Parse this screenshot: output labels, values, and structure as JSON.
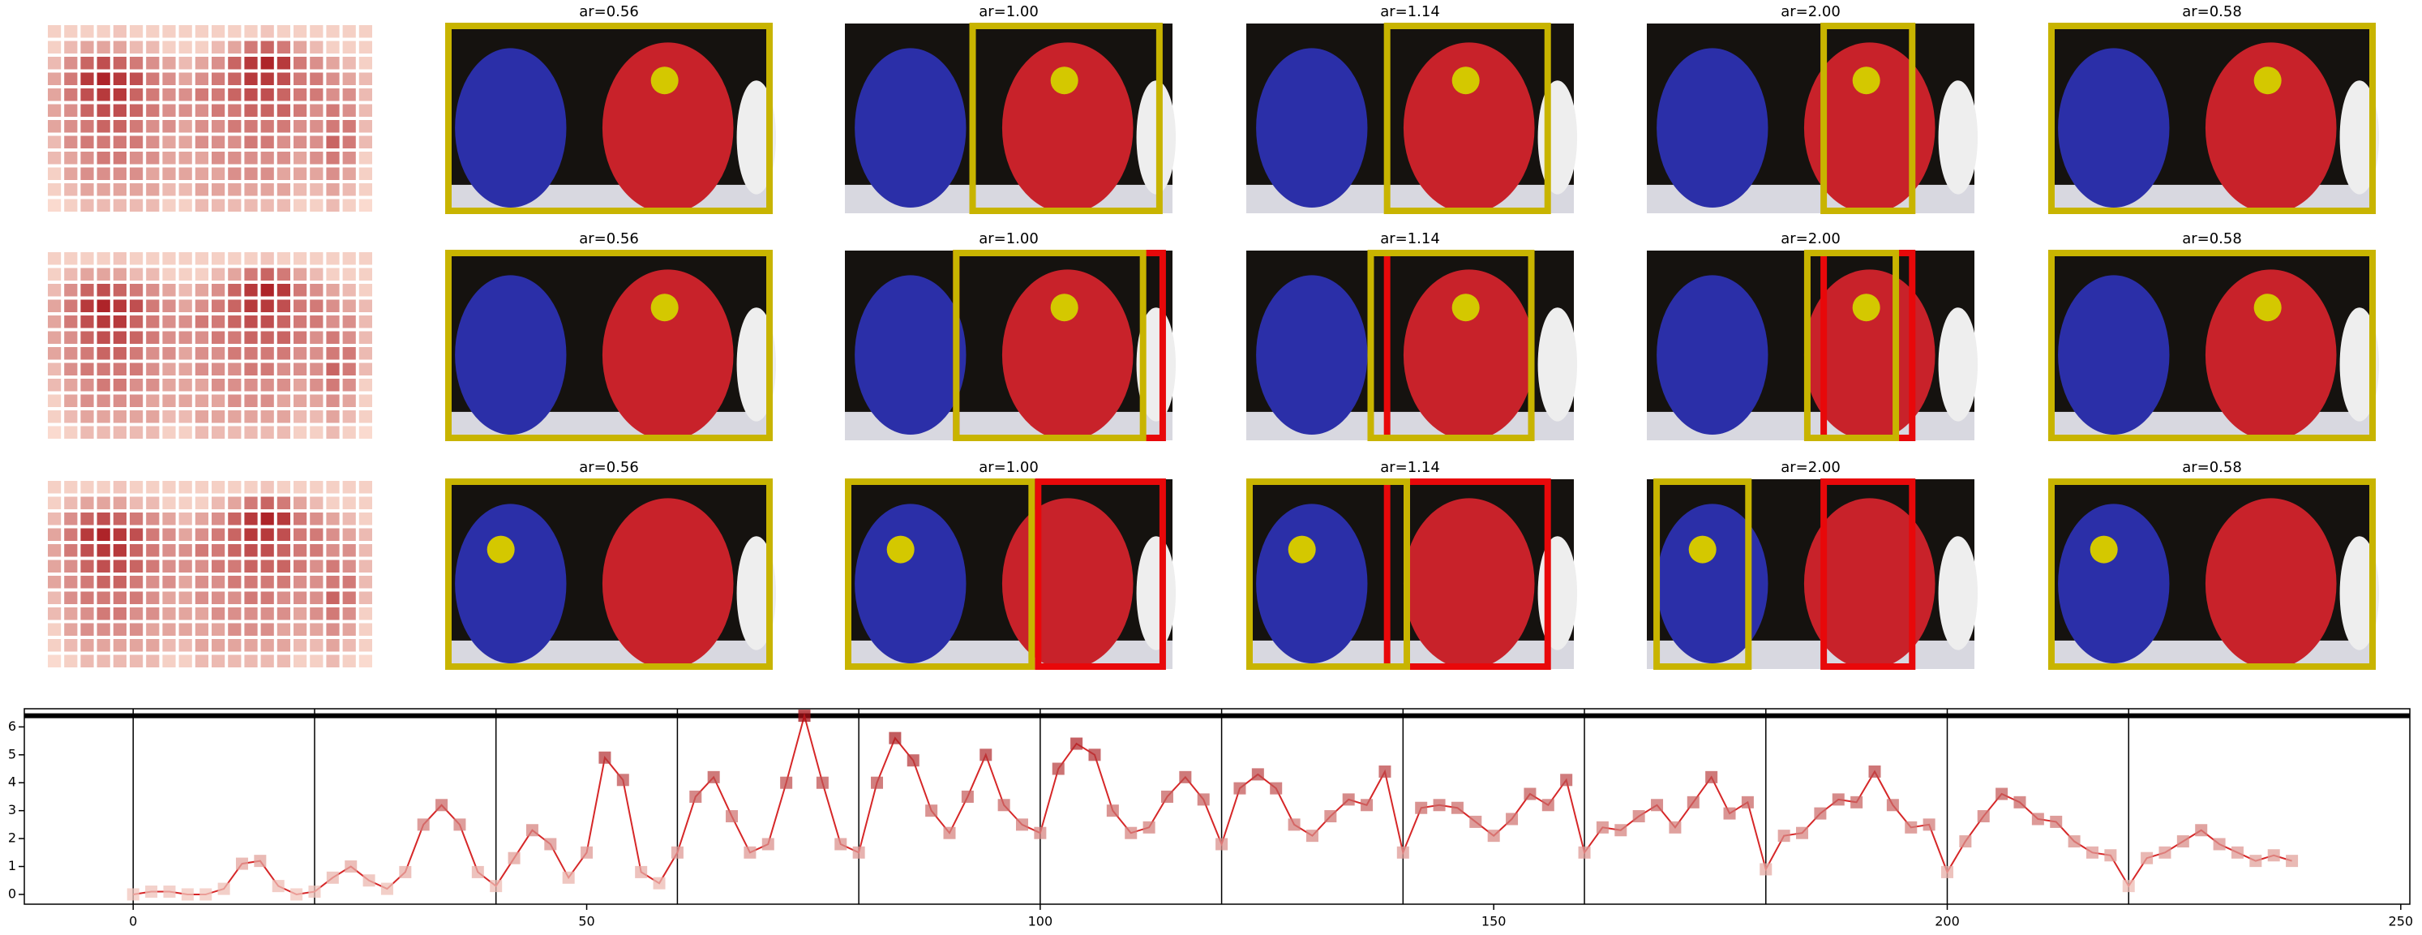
{
  "panel_titles": [
    [
      "ar=0.56",
      "ar=1.00",
      "ar=1.14",
      "ar=2.00",
      "ar=0.58"
    ],
    [
      "ar=0.56",
      "ar=1.00",
      "ar=1.14",
      "ar=2.00",
      "ar=0.58"
    ],
    [
      "ar=0.56",
      "ar=1.00",
      "ar=1.14",
      "ar=2.00",
      "ar=0.58"
    ]
  ],
  "heatmap": [
    [
      0.1,
      0.1,
      0.1,
      0.1,
      0.15,
      0.1,
      0.1,
      0.1,
      0.1,
      0.1,
      0.1,
      0.1,
      0.1,
      0.15,
      0.1,
      0.1,
      0.1,
      0.1,
      0.1,
      0.1
    ],
    [
      0.1,
      0.2,
      0.3,
      0.3,
      0.3,
      0.2,
      0.2,
      0.1,
      0.1,
      0.1,
      0.2,
      0.3,
      0.5,
      0.6,
      0.5,
      0.3,
      0.2,
      0.1,
      0.1,
      0.1
    ],
    [
      0.2,
      0.4,
      0.6,
      0.7,
      0.6,
      0.5,
      0.4,
      0.3,
      0.2,
      0.3,
      0.4,
      0.6,
      0.8,
      0.9,
      0.8,
      0.5,
      0.4,
      0.3,
      0.2,
      0.1
    ],
    [
      0.3,
      0.5,
      0.8,
      0.9,
      0.8,
      0.7,
      0.5,
      0.4,
      0.3,
      0.4,
      0.5,
      0.6,
      0.8,
      0.8,
      0.7,
      0.5,
      0.5,
      0.4,
      0.3,
      0.2
    ],
    [
      0.3,
      0.5,
      0.7,
      0.8,
      0.8,
      0.6,
      0.5,
      0.4,
      0.4,
      0.5,
      0.5,
      0.6,
      0.7,
      0.7,
      0.6,
      0.5,
      0.5,
      0.4,
      0.4,
      0.2
    ],
    [
      0.3,
      0.4,
      0.6,
      0.7,
      0.7,
      0.6,
      0.5,
      0.4,
      0.4,
      0.4,
      0.5,
      0.5,
      0.6,
      0.6,
      0.6,
      0.5,
      0.4,
      0.5,
      0.4,
      0.2
    ],
    [
      0.3,
      0.4,
      0.5,
      0.6,
      0.6,
      0.5,
      0.4,
      0.4,
      0.3,
      0.4,
      0.4,
      0.5,
      0.5,
      0.5,
      0.5,
      0.4,
      0.4,
      0.5,
      0.5,
      0.2
    ],
    [
      0.2,
      0.4,
      0.5,
      0.5,
      0.5,
      0.5,
      0.4,
      0.3,
      0.3,
      0.4,
      0.4,
      0.4,
      0.5,
      0.5,
      0.4,
      0.4,
      0.4,
      0.6,
      0.5,
      0.2
    ],
    [
      0.2,
      0.3,
      0.4,
      0.5,
      0.5,
      0.4,
      0.4,
      0.3,
      0.3,
      0.3,
      0.4,
      0.4,
      0.4,
      0.4,
      0.4,
      0.3,
      0.4,
      0.5,
      0.4,
      0.1
    ],
    [
      0.1,
      0.3,
      0.4,
      0.4,
      0.4,
      0.4,
      0.3,
      0.3,
      0.3,
      0.3,
      0.3,
      0.4,
      0.4,
      0.4,
      0.3,
      0.3,
      0.3,
      0.4,
      0.3,
      0.1
    ],
    [
      0.1,
      0.2,
      0.3,
      0.3,
      0.3,
      0.3,
      0.3,
      0.2,
      0.2,
      0.3,
      0.3,
      0.3,
      0.3,
      0.3,
      0.3,
      0.2,
      0.2,
      0.3,
      0.2,
      0.1
    ],
    [
      0.05,
      0.1,
      0.2,
      0.2,
      0.2,
      0.2,
      0.2,
      0.1,
      0.1,
      0.2,
      0.2,
      0.2,
      0.2,
      0.2,
      0.2,
      0.1,
      0.1,
      0.2,
      0.1,
      0.05
    ]
  ],
  "chart_data": {
    "type": "line",
    "color": "#d62728",
    "x": [
      0,
      2,
      4,
      6,
      8,
      10,
      12,
      14,
      16,
      18,
      20,
      22,
      24,
      26,
      28,
      30,
      32,
      34,
      36,
      38,
      40,
      42,
      44,
      46,
      48,
      50,
      52,
      54,
      56,
      58,
      60,
      62,
      64,
      66,
      68,
      70,
      72,
      74,
      76,
      78,
      80,
      82,
      84,
      86,
      88,
      90,
      92,
      94,
      96,
      98,
      100,
      102,
      104,
      106,
      108,
      110,
      112,
      114,
      116,
      118,
      120,
      122,
      124,
      126,
      128,
      130,
      132,
      134,
      136,
      138,
      140,
      142,
      144,
      146,
      148,
      150,
      152,
      154,
      156,
      158,
      160,
      162,
      164,
      166,
      168,
      170,
      172,
      174,
      176,
      178,
      180,
      182,
      184,
      186,
      188,
      190,
      192,
      194,
      196,
      198,
      200,
      202,
      204,
      206,
      208,
      210,
      212,
      214,
      216,
      218,
      220,
      222,
      224,
      226,
      228,
      230,
      232,
      234,
      236,
      238
    ],
    "values": [
      0,
      0.1,
      0.1,
      0,
      0,
      0.2,
      1.1,
      1.2,
      0.3,
      0,
      0.1,
      0.6,
      1,
      0.5,
      0.2,
      0.8,
      2.5,
      3.2,
      2.5,
      0.8,
      0.3,
      1.3,
      2.3,
      1.8,
      0.6,
      1.5,
      4.9,
      4.1,
      0.8,
      0.4,
      1.5,
      3.5,
      4.2,
      2.8,
      1.5,
      1.8,
      4,
      6.4,
      4,
      1.8,
      1.5,
      4,
      5.6,
      4.8,
      3,
      2.2,
      3.5,
      5,
      3.2,
      2.5,
      2.2,
      4.5,
      5.4,
      5,
      3,
      2.2,
      2.4,
      3.5,
      4.2,
      3.4,
      1.8,
      3.8,
      4.3,
      3.8,
      2.5,
      2.1,
      2.8,
      3.4,
      3.2,
      4.4,
      1.5,
      3.1,
      3.2,
      3.1,
      2.6,
      2.1,
      2.7,
      3.6,
      3.2,
      4.1,
      1.5,
      2.4,
      2.3,
      2.8,
      3.2,
      2.4,
      3.3,
      4.2,
      2.9,
      3.3,
      0.9,
      2.1,
      2.2,
      2.9,
      3.4,
      3.3,
      4.4,
      3.2,
      2.4,
      2.5,
      0.8,
      1.9,
      2.8,
      3.6,
      3.3,
      2.7,
      2.6,
      1.9,
      1.5,
      1.4,
      0.3,
      1.3,
      1.5,
      1.9,
      2.3,
      1.8,
      1.5,
      1.2,
      1.4,
      1.2
    ],
    "xlim": [
      -12,
      251
    ],
    "ylim": [
      -0.35,
      6.65
    ],
    "xticks": [
      0,
      50,
      100,
      150,
      200,
      250
    ],
    "yticks": [
      0,
      1,
      2,
      3,
      4,
      5,
      6
    ],
    "vlines": [
      0,
      20,
      40,
      60,
      80,
      100,
      120,
      140,
      160,
      180,
      200,
      220
    ],
    "hline": 6.4
  }
}
